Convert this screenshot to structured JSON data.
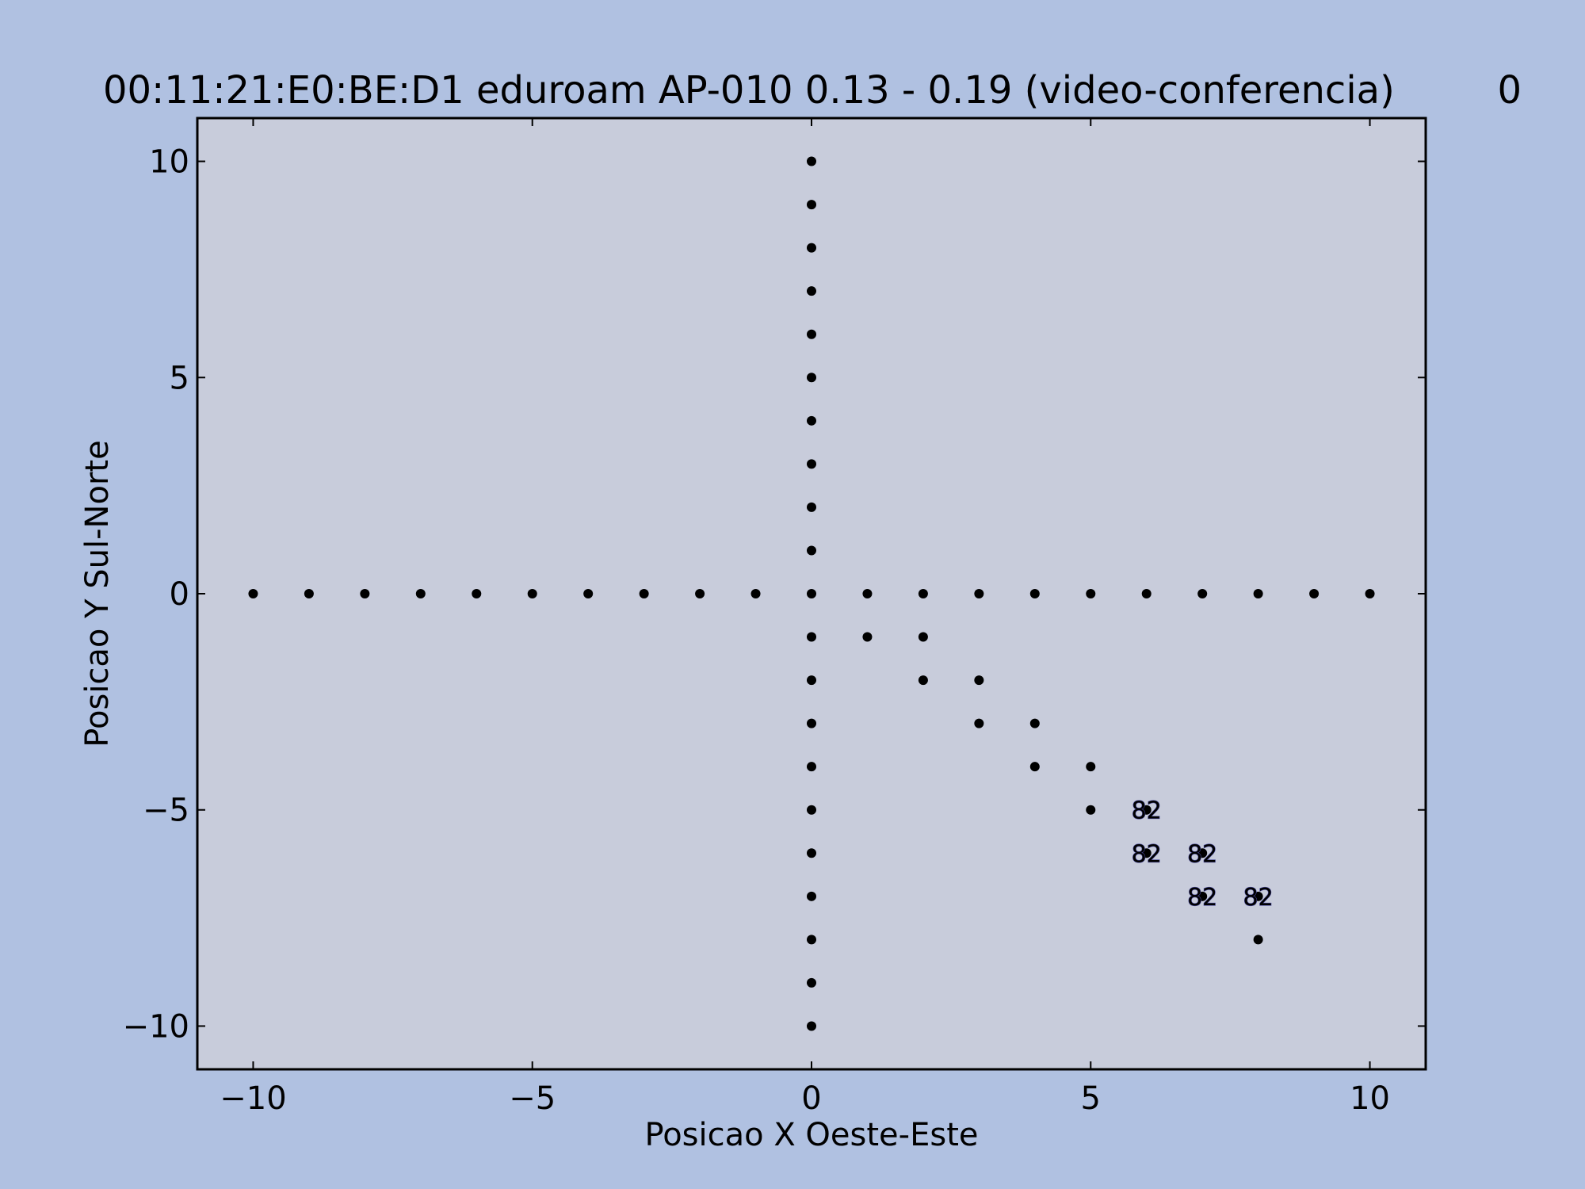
{
  "chart_data": {
    "type": "scatter",
    "title": "00:11:21:E0:BE:D1 eduroam AP-010 0.13 - 0.19 (video-conferencia)",
    "title_suffix": "0",
    "xlabel": "Posicao X Oeste-Este",
    "ylabel": "Posicao Y Sul-Norte",
    "xlim": [
      -11,
      11
    ],
    "ylim": [
      -11,
      11
    ],
    "xticks": [
      -10,
      -5,
      0,
      5,
      10
    ],
    "yticks": [
      -10,
      -5,
      0,
      5,
      10
    ],
    "xtick_labels": [
      "−10",
      "−5",
      "0",
      "5",
      "10"
    ],
    "ytick_labels": [
      "−10",
      "−5",
      "0",
      "5",
      "10"
    ],
    "grid": false,
    "colors": {
      "figure_bg": "#b0c1e1",
      "plot_bg": "#c8ccdb",
      "points": "#000000",
      "label_fill": "#ffffff",
      "label_stroke": "#4a4a9a"
    },
    "points": [
      [
        -10,
        0
      ],
      [
        -9,
        0
      ],
      [
        -8,
        0
      ],
      [
        -7,
        0
      ],
      [
        -6,
        0
      ],
      [
        -5,
        0
      ],
      [
        -4,
        0
      ],
      [
        -3,
        0
      ],
      [
        -2,
        0
      ],
      [
        -1,
        0
      ],
      [
        0,
        0
      ],
      [
        1,
        0
      ],
      [
        2,
        0
      ],
      [
        3,
        0
      ],
      [
        4,
        0
      ],
      [
        5,
        0
      ],
      [
        6,
        0
      ],
      [
        7,
        0
      ],
      [
        8,
        0
      ],
      [
        9,
        0
      ],
      [
        10,
        0
      ],
      [
        0,
        1
      ],
      [
        0,
        2
      ],
      [
        0,
        3
      ],
      [
        0,
        4
      ],
      [
        0,
        5
      ],
      [
        0,
        6
      ],
      [
        0,
        7
      ],
      [
        0,
        8
      ],
      [
        0,
        9
      ],
      [
        0,
        10
      ],
      [
        0,
        -1
      ],
      [
        0,
        -2
      ],
      [
        0,
        -3
      ],
      [
        0,
        -4
      ],
      [
        0,
        -5
      ],
      [
        0,
        -6
      ],
      [
        0,
        -7
      ],
      [
        0,
        -8
      ],
      [
        0,
        -9
      ],
      [
        0,
        -10
      ],
      [
        1,
        -1
      ],
      [
        2,
        -1
      ],
      [
        2,
        -2
      ],
      [
        3,
        -2
      ],
      [
        3,
        -3
      ],
      [
        4,
        -3
      ],
      [
        4,
        -4
      ],
      [
        5,
        -4
      ],
      [
        5,
        -5
      ],
      [
        6,
        -5
      ],
      [
        6,
        -6
      ],
      [
        7,
        -6
      ],
      [
        7,
        -7
      ],
      [
        8,
        -7
      ],
      [
        8,
        -8
      ]
    ],
    "annotations": [
      {
        "x": 6,
        "y": -5,
        "text": "82"
      },
      {
        "x": 6,
        "y": -6,
        "text": "82"
      },
      {
        "x": 7,
        "y": -6,
        "text": "82"
      },
      {
        "x": 7,
        "y": -7,
        "text": "82"
      },
      {
        "x": 8,
        "y": -7,
        "text": "82"
      }
    ]
  }
}
